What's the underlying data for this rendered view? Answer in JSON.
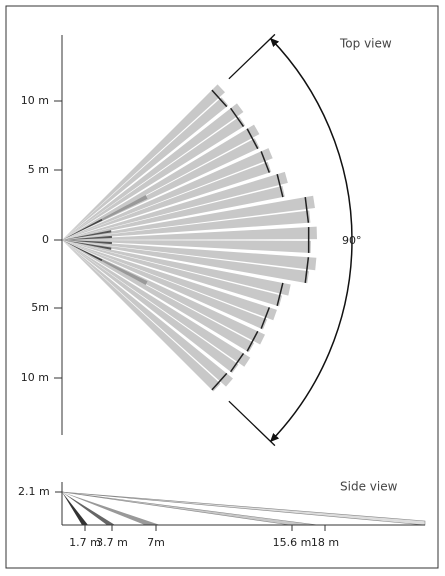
{
  "top_view": {
    "title": "Top view",
    "y_labels": [
      "10 m",
      "5 m",
      "0",
      "5m",
      "10 m"
    ],
    "angle_label": "90°"
  },
  "side_view": {
    "title": "Side view",
    "height_label": "2.1 m",
    "x_labels": [
      "1.7 m",
      "3.7 m",
      "7m",
      "15.6 m",
      "18 m"
    ]
  }
}
